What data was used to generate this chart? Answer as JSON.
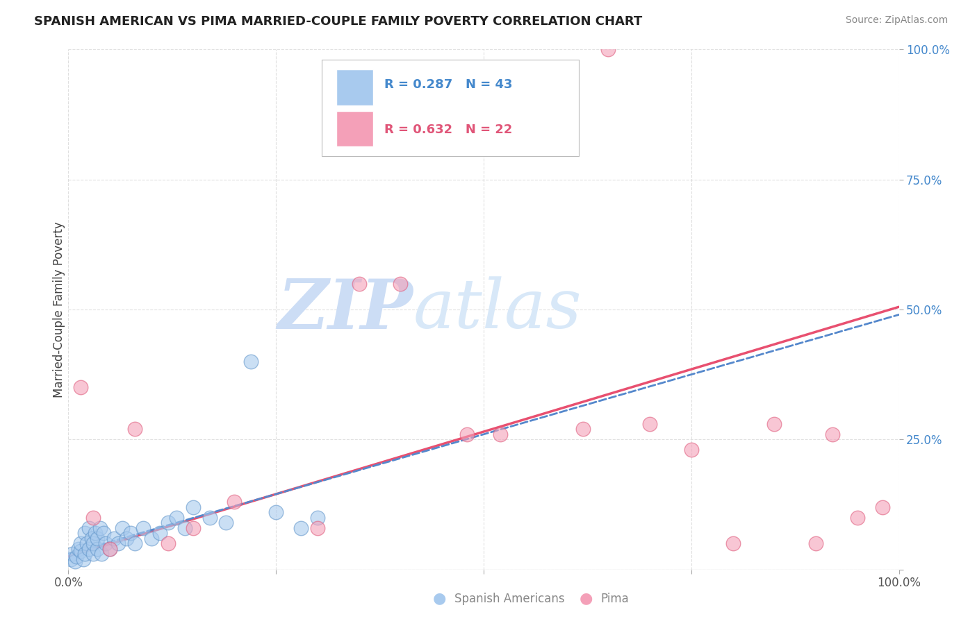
{
  "title": "SPANISH AMERICAN VS PIMA MARRIED-COUPLE FAMILY POVERTY CORRELATION CHART",
  "source": "Source: ZipAtlas.com",
  "ylabel": "Married-Couple Family Poverty",
  "R_blue": 0.287,
  "N_blue": 43,
  "R_pink": 0.632,
  "N_pink": 22,
  "blue_color": "#a8caee",
  "blue_edge_color": "#6699cc",
  "pink_color": "#f4a0b8",
  "pink_edge_color": "#e06080",
  "blue_line_color": "#5588cc",
  "pink_line_color": "#e85070",
  "watermark_zip_color": "#ddeeff",
  "watermark_atlas_color": "#dde8f0",
  "background_color": "#ffffff",
  "grid_color": "#cccccc",
  "tick_color": "#4488cc",
  "blue_scatter_x": [
    0.3,
    0.5,
    0.8,
    1.0,
    1.2,
    1.5,
    1.5,
    1.8,
    2.0,
    2.0,
    2.2,
    2.5,
    2.5,
    2.8,
    3.0,
    3.0,
    3.2,
    3.5,
    3.5,
    3.8,
    4.0,
    4.2,
    4.5,
    5.0,
    5.5,
    6.0,
    6.5,
    7.0,
    7.5,
    8.0,
    9.0,
    10.0,
    11.0,
    12.0,
    13.0,
    14.0,
    15.0,
    17.0,
    19.0,
    22.0,
    25.0,
    28.0,
    30.0
  ],
  "blue_scatter_y": [
    2.0,
    3.0,
    1.5,
    2.5,
    4.0,
    3.5,
    5.0,
    2.0,
    3.0,
    7.0,
    5.0,
    4.0,
    8.0,
    6.0,
    3.0,
    5.0,
    7.0,
    4.0,
    6.0,
    8.0,
    3.0,
    7.0,
    5.0,
    4.0,
    6.0,
    5.0,
    8.0,
    6.0,
    7.0,
    5.0,
    8.0,
    6.0,
    7.0,
    9.0,
    10.0,
    8.0,
    12.0,
    10.0,
    9.0,
    40.0,
    11.0,
    8.0,
    10.0
  ],
  "pink_scatter_x": [
    1.5,
    3.0,
    5.0,
    8.0,
    12.0,
    15.0,
    20.0,
    30.0,
    35.0,
    40.0,
    48.0,
    52.0,
    62.0,
    65.0,
    70.0,
    75.0,
    80.0,
    85.0,
    90.0,
    92.0,
    95.0,
    98.0
  ],
  "pink_scatter_y": [
    35.0,
    10.0,
    4.0,
    27.0,
    5.0,
    8.0,
    13.0,
    8.0,
    55.0,
    55.0,
    26.0,
    26.0,
    27.0,
    100.0,
    28.0,
    23.0,
    5.0,
    28.0,
    5.0,
    26.0,
    10.0,
    12.0
  ],
  "legend_label_blue": "R = 0.287   N = 43",
  "legend_label_pink": "R = 0.632   N = 22",
  "bottom_legend_blue": "Spanish Americans",
  "bottom_legend_pink": "Pima"
}
